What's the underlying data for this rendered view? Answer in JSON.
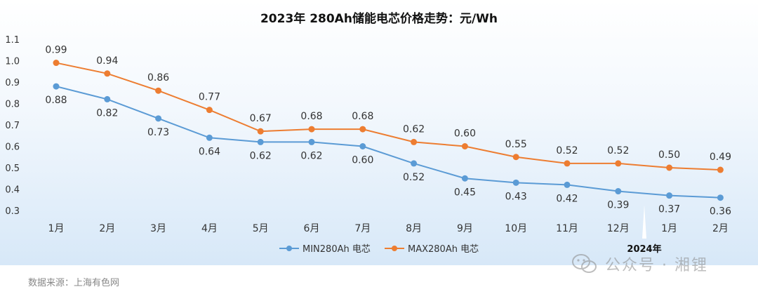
{
  "chart_data": {
    "type": "line",
    "title": "2023年 280Ah储能电芯价格走势：元/Wh",
    "categories": [
      "1月",
      "2月",
      "3月",
      "4月",
      "5月",
      "6月",
      "7月",
      "8月",
      "9月",
      "10月",
      "11月",
      "12月",
      "1月",
      "2月"
    ],
    "series": [
      {
        "name": "MIN280Ah 电芯",
        "color": "#5b9bd5",
        "values": [
          0.88,
          0.82,
          0.73,
          0.64,
          0.62,
          0.62,
          0.6,
          0.52,
          0.45,
          0.43,
          0.42,
          0.39,
          0.37,
          0.36
        ]
      },
      {
        "name": "MAX280Ah 电芯",
        "color": "#ed7d31",
        "values": [
          0.99,
          0.94,
          0.86,
          0.77,
          0.67,
          0.68,
          0.68,
          0.62,
          0.6,
          0.55,
          0.52,
          0.52,
          0.5,
          0.49
        ]
      }
    ],
    "ylim": [
      0.3,
      1.1
    ],
    "yticks": [
      "0.3",
      "0.4",
      "0.5",
      "0.6",
      "0.7",
      "0.8",
      "0.9",
      "1.0",
      "1.1"
    ],
    "grid": false,
    "legend": "bottom",
    "annotation": "2024年"
  },
  "source": "数据来源：上海有色网",
  "watermark": {
    "text": "公众号 · 湘锂",
    "icon": "wechat-icon"
  }
}
